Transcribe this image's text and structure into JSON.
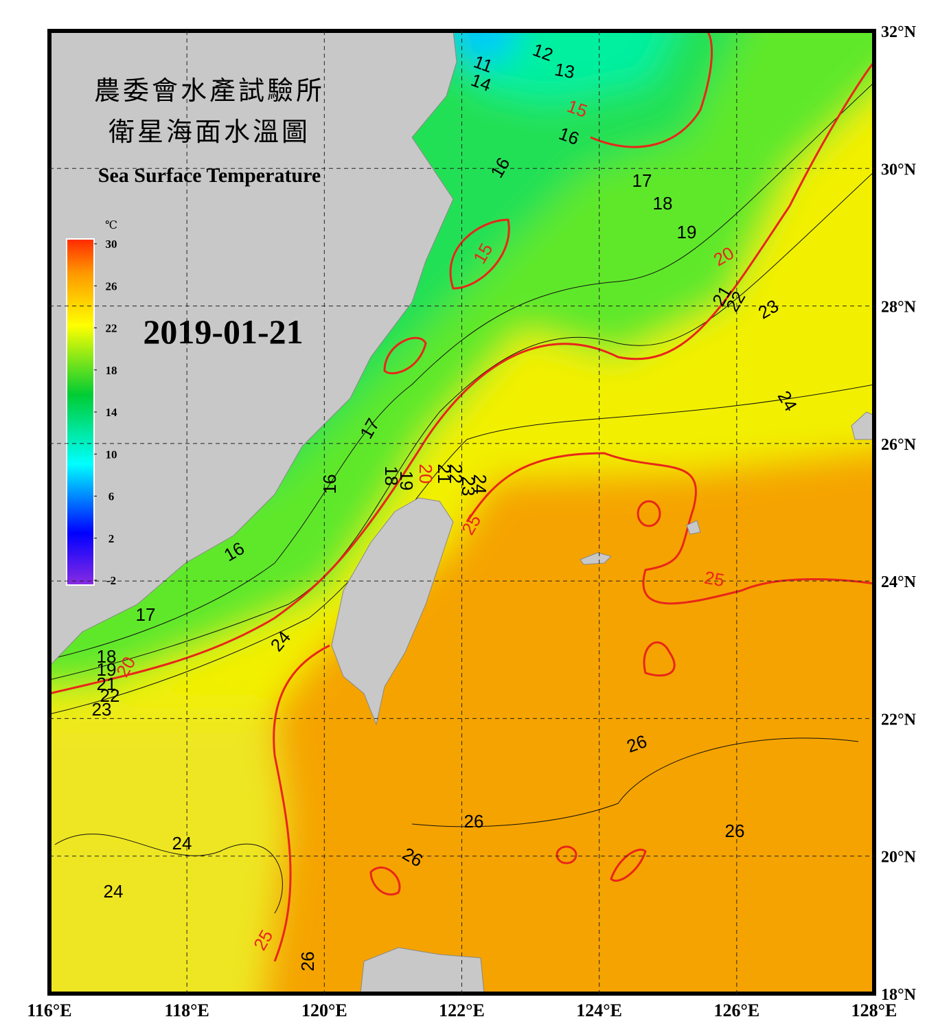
{
  "header": {
    "title_lines": [
      "農委會水產試驗所",
      "衛星海面水溫圖"
    ],
    "subtitle": "Sea Surface Temperature",
    "date": "2019-01-21"
  },
  "colorbar": {
    "unit": "℃",
    "range": [
      -2,
      30
    ],
    "ticks": [
      30,
      26,
      22,
      18,
      14,
      10,
      6,
      2,
      -2
    ]
  },
  "map": {
    "xlim": [
      116,
      128
    ],
    "ylim": [
      18,
      32
    ],
    "xticks": [
      {
        "value": 116,
        "label": "116°E"
      },
      {
        "value": 118,
        "label": "118°E"
      },
      {
        "value": 120,
        "label": "120°E"
      },
      {
        "value": 122,
        "label": "122°E"
      },
      {
        "value": 124,
        "label": "124°E"
      },
      {
        "value": 126,
        "label": "126°E"
      },
      {
        "value": 128,
        "label": "128°E"
      }
    ],
    "yticks": [
      {
        "value": 18,
        "label": "18°N"
      },
      {
        "value": 20,
        "label": "20°N"
      },
      {
        "value": 22,
        "label": "22°N"
      },
      {
        "value": 24,
        "label": "24°N"
      },
      {
        "value": 26,
        "label": "26°N"
      },
      {
        "value": 28,
        "label": "28°N"
      },
      {
        "value": 30,
        "label": "30°N"
      },
      {
        "value": 32,
        "label": "32°N"
      }
    ],
    "grid": true,
    "contour_labels": [
      12,
      13,
      11,
      14,
      16,
      16,
      17,
      18,
      19,
      21,
      22,
      23,
      24,
      17,
      16,
      18,
      19,
      21,
      22,
      23,
      24,
      16,
      17,
      24,
      18,
      19,
      21,
      22,
      23,
      26,
      26,
      26,
      26,
      24,
      24,
      26
    ],
    "major_contour_labels": [
      15,
      15,
      20,
      20,
      20,
      25,
      25,
      25
    ],
    "major_contour_color": "#e8261a"
  }
}
